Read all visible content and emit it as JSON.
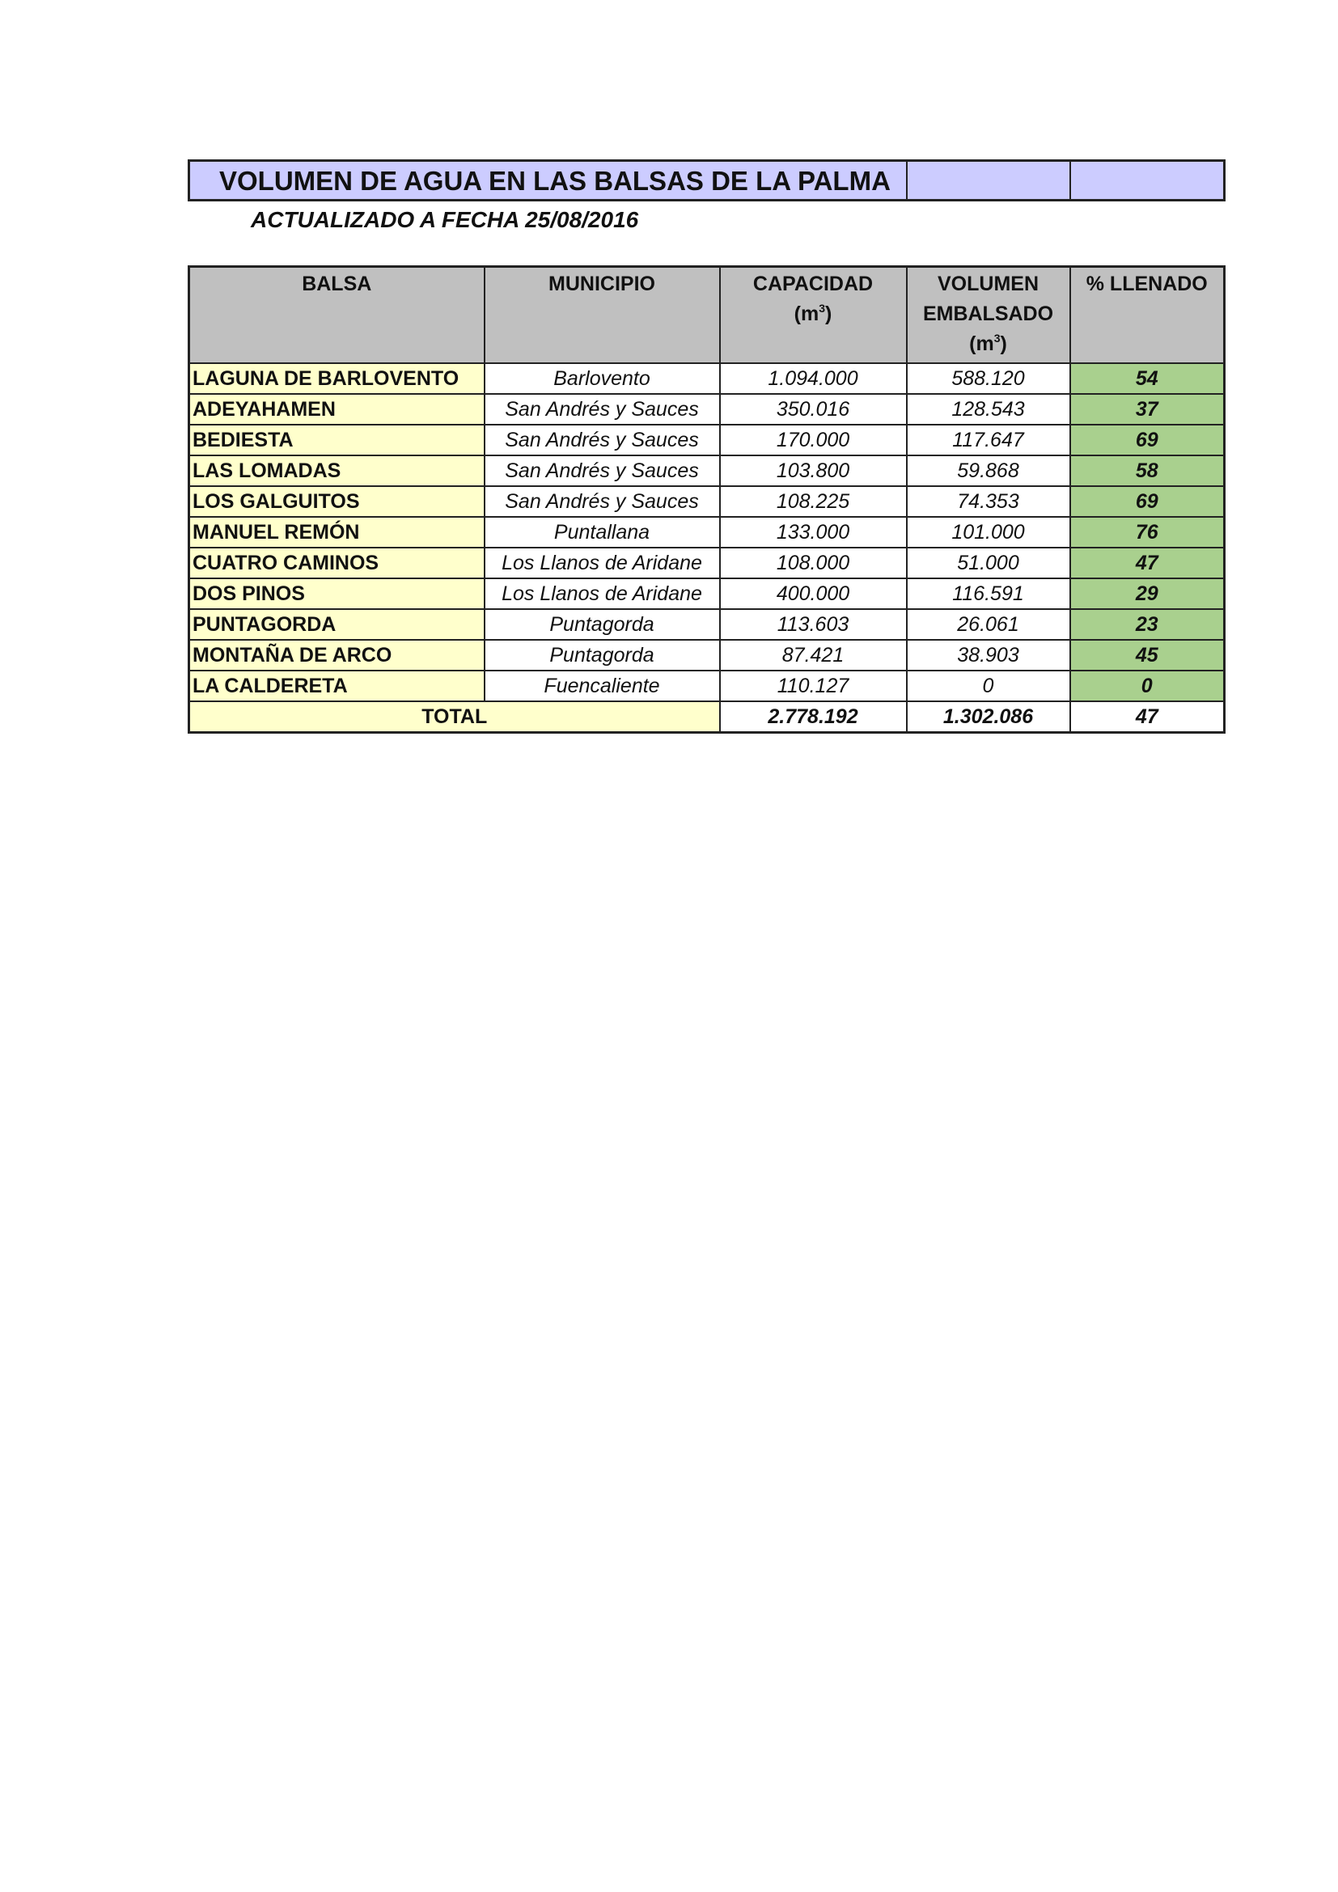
{
  "title": "VOLUMEN DE AGUA EN LAS BALSAS DE LA PALMA",
  "subtitle": "ACTUALIZADO A FECHA 25/08/2016",
  "colors": {
    "title_bg": "#ccccff",
    "header_bg": "#c0c0c0",
    "name_bg": "#ffffcc",
    "pct_bg": "#a9d08e"
  },
  "headers": {
    "balsa": "BALSA",
    "municipio": "MUNICIPIO",
    "capacidad": "CAPACIDAD",
    "capacidad_unit": "(m",
    "volumen": "VOLUMEN",
    "volumen2": "EMBALSADO",
    "volumen_unit": "(m",
    "unit_exp": "3",
    "unit_close": ")",
    "llenado": "% LLENADO"
  },
  "rows": [
    {
      "balsa": "LAGUNA DE BARLOVENTO",
      "municipio": "Barlovento",
      "capacidad": "1.094.000",
      "volumen": "588.120",
      "llenado": "54"
    },
    {
      "balsa": "ADEYAHAMEN",
      "municipio": "San Andrés y Sauces",
      "capacidad": "350.016",
      "volumen": "128.543",
      "llenado": "37"
    },
    {
      "balsa": "BEDIESTA",
      "municipio": "San Andrés y Sauces",
      "capacidad": "170.000",
      "volumen": "117.647",
      "llenado": "69"
    },
    {
      "balsa": "LAS LOMADAS",
      "municipio": "San Andrés y Sauces",
      "capacidad": "103.800",
      "volumen": "59.868",
      "llenado": "58"
    },
    {
      "balsa": "LOS GALGUITOS",
      "municipio": "San Andrés y Sauces",
      "capacidad": "108.225",
      "volumen": "74.353",
      "llenado": "69"
    },
    {
      "balsa": "MANUEL REMÓN",
      "municipio": "Puntallana",
      "capacidad": "133.000",
      "volumen": "101.000",
      "llenado": "76"
    },
    {
      "balsa": "CUATRO CAMINOS",
      "municipio": "Los Llanos de Aridane",
      "capacidad": "108.000",
      "volumen": "51.000",
      "llenado": "47"
    },
    {
      "balsa": "DOS PINOS",
      "municipio": "Los Llanos de Aridane",
      "capacidad": "400.000",
      "volumen": "116.591",
      "llenado": "29"
    },
    {
      "balsa": "PUNTAGORDA",
      "municipio": "Puntagorda",
      "capacidad": "113.603",
      "volumen": "26.061",
      "llenado": "23"
    },
    {
      "balsa": "MONTAÑA DE ARCO",
      "municipio": "Puntagorda",
      "capacidad": "87.421",
      "volumen": "38.903",
      "llenado": "45"
    },
    {
      "balsa": "LA CALDERETA",
      "municipio": "Fuencaliente",
      "capacidad": "110.127",
      "volumen": "0",
      "llenado": "0"
    }
  ],
  "total": {
    "label": "TOTAL",
    "capacidad": "2.778.192",
    "volumen": "1.302.086",
    "llenado": "47"
  }
}
